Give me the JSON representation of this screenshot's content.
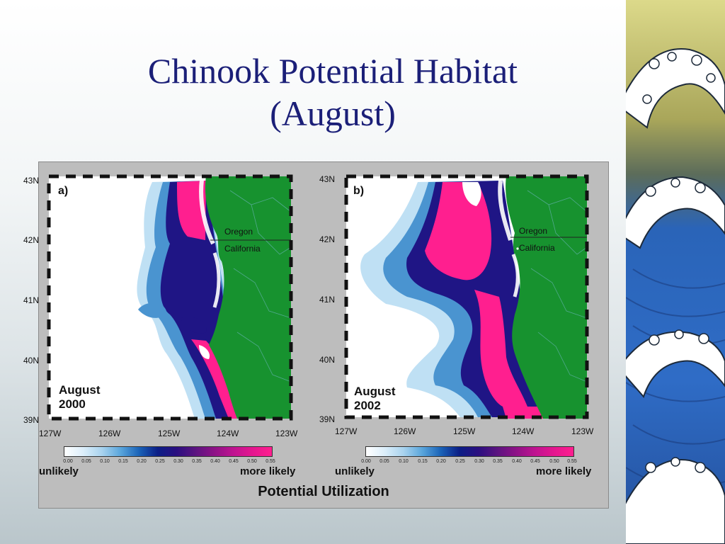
{
  "slide": {
    "title_line1": "Chinook Potential Habitat",
    "title_line2": "(August)"
  },
  "maps": [
    {
      "letter": "a)",
      "date_month": "August",
      "date_year": "2000",
      "states": [
        "Oregon",
        "California"
      ],
      "lat_labels": [
        "43N",
        "42N",
        "41N",
        "40N",
        "39N"
      ],
      "lon_labels": [
        "127W",
        "126W",
        "125W",
        "124W",
        "123W"
      ]
    },
    {
      "letter": "b)",
      "date_month": "August",
      "date_year": "2002",
      "states": [
        "Oregon",
        "California"
      ],
      "lat_labels": [
        "43N",
        "42N",
        "41N",
        "40N",
        "39N"
      ],
      "lon_labels": [
        "127W",
        "126W",
        "125W",
        "124W",
        "123W"
      ]
    }
  ],
  "legend": {
    "ticks": [
      "0.00",
      "0.05",
      "0.10",
      "0.15",
      "0.20",
      "0.25",
      "0.30",
      "0.35",
      "0.40",
      "0.45",
      "0.50",
      "0.55"
    ],
    "low_label": "unlikely",
    "high_label": "more likely",
    "title": "Potential Utilization"
  },
  "colors": {
    "land": "#17922f",
    "high_habitat": "#ff1f8f",
    "mid_habitat": "#1f1585",
    "low_habitat": "#4a94d0",
    "title_text": "#1b1f78"
  }
}
